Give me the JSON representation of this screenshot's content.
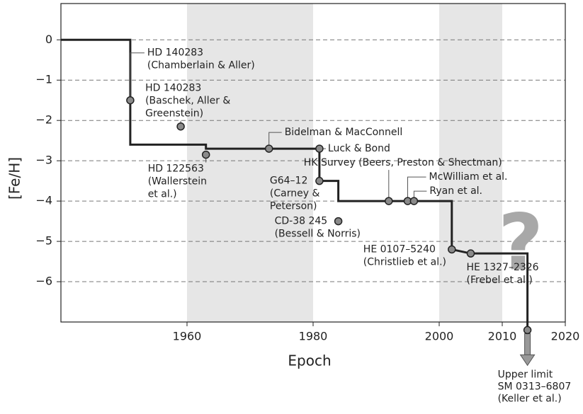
{
  "chart_data": {
    "type": "step_annotated",
    "xlabel": "Epoch",
    "ylabel": "[Fe/H]",
    "xlim": [
      1940,
      2020
    ],
    "ylim": [
      -7,
      0.9
    ],
    "xticks": [
      1960,
      1980,
      2000,
      2010,
      2020
    ],
    "yticks": [
      0,
      {
        "value": -1,
        "label": "−1"
      },
      {
        "value": -2,
        "label": "−2"
      },
      {
        "value": -3,
        "label": "−3"
      },
      {
        "value": -4,
        "label": "−4"
      },
      {
        "value": -5,
        "label": "−5"
      },
      {
        "value": -6,
        "label": "−6"
      }
    ],
    "grid": true,
    "shaded_spans": [
      [
        1960,
        1980
      ],
      [
        2000,
        2010
      ]
    ],
    "annotation": "?",
    "line": {
      "color": "#222222",
      "x": [
        1940,
        1951,
        1951,
        1963,
        1963,
        1981,
        1981,
        1984,
        1984,
        2002,
        2002,
        2005,
        2014,
        2014
      ],
      "values": [
        0,
        0,
        -2.6,
        -2.6,
        -2.7,
        -2.7,
        -3.5,
        -3.5,
        -4.0,
        -4.0,
        -5.2,
        -5.3,
        -5.3,
        -7.2
      ]
    },
    "points": {
      "color": "#8a8a8a",
      "x": [
        1951,
        1959,
        1963,
        1973,
        1981,
        1981,
        1984,
        1992,
        1995,
        1996,
        2002,
        2005,
        2014
      ],
      "values": [
        -1.5,
        -2.15,
        -2.85,
        -2.7,
        -2.7,
        -3.5,
        -4.5,
        -4.0,
        -4.0,
        -4.0,
        -5.2,
        -5.3,
        -7.2
      ],
      "upper_limit": [
        false,
        false,
        false,
        false,
        false,
        false,
        false,
        false,
        false,
        false,
        false,
        false,
        true
      ],
      "labels": [
        [
          "HD 140283",
          "(Chamberlain & Aller)"
        ],
        [
          "HD 140283",
          "(Baschek, Aller &",
          "Greenstein)"
        ],
        [
          "HD 122563",
          "(Wallerstein",
          "et al.)"
        ],
        [
          "Bidelman & MacConnell"
        ],
        [
          "Luck & Bond"
        ],
        [
          "G64–12",
          "(Carney &",
          "Peterson)"
        ],
        [
          "CD-38 245",
          "(Bessell & Norris)"
        ],
        [
          "HK Survey (Beers, Preston & Shectman)"
        ],
        [
          "McWilliam et al."
        ],
        [
          "Ryan et al."
        ],
        [
          "HE 0107–5240",
          "(Christlieb et al.)"
        ],
        [
          "HE 1327–2326",
          "(Frebel et al.)"
        ],
        [
          "Upper limit",
          "SM 0313–6807",
          "(Keller et al.)"
        ]
      ]
    }
  }
}
